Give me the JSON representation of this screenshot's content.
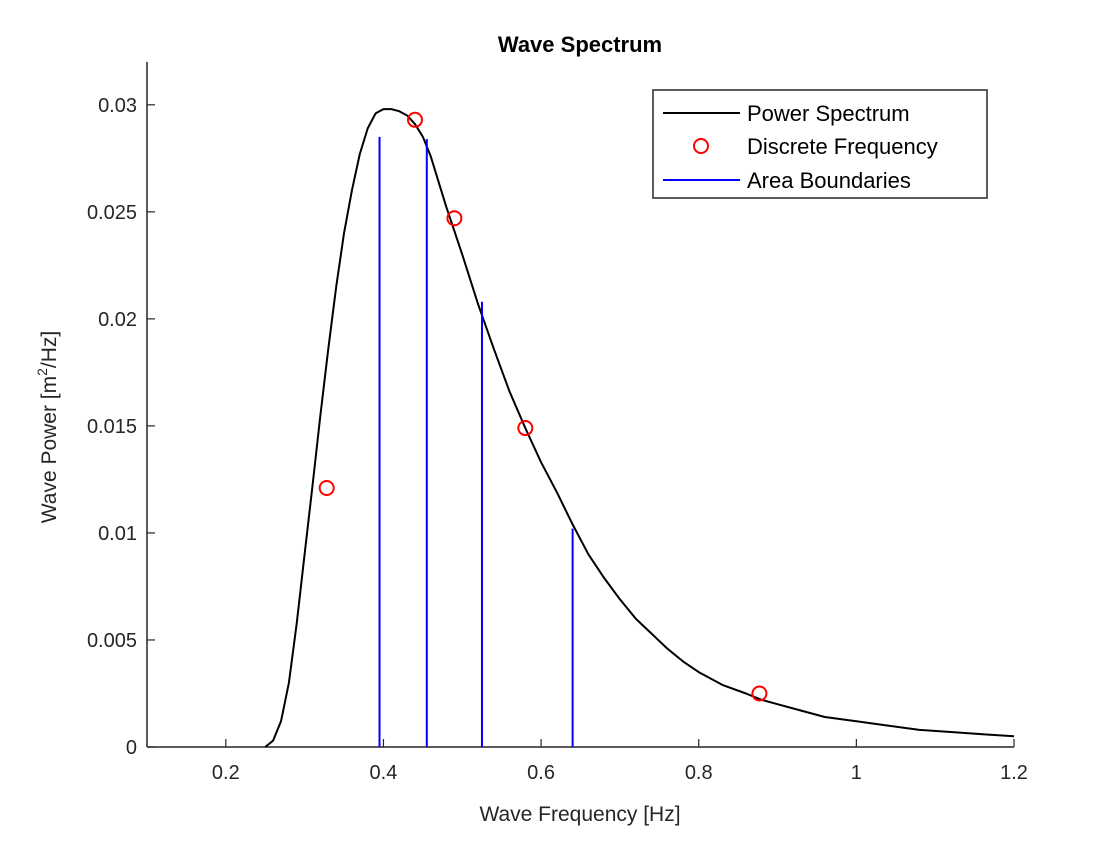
{
  "chart_data": {
    "type": "line",
    "title": "Wave Spectrum",
    "xlabel": "Wave Frequency [Hz]",
    "ylabel_prefix": "Wave Power [m",
    "ylabel_sup": "2",
    "ylabel_suffix": "/Hz]",
    "xlim": [
      0.1,
      1.2
    ],
    "ylim": [
      0,
      0.032
    ],
    "xticks": [
      0.2,
      0.4,
      0.6,
      0.8,
      1,
      1.2
    ],
    "xtick_labels": [
      "0.2",
      "0.4",
      "0.6",
      "0.8",
      "1",
      "1.2"
    ],
    "yticks": [
      0,
      0.005,
      0.01,
      0.015,
      0.02,
      0.025,
      0.03
    ],
    "ytick_labels": [
      "0",
      "0.005",
      "0.01",
      "0.015",
      "0.02",
      "0.025",
      "0.03"
    ],
    "grid": false,
    "legend_position": "top-right",
    "series": [
      {
        "name": "Power Spectrum",
        "kind": "line",
        "color": "#000000",
        "x": [
          0.25,
          0.26,
          0.27,
          0.28,
          0.29,
          0.3,
          0.31,
          0.32,
          0.33,
          0.34,
          0.35,
          0.36,
          0.37,
          0.38,
          0.39,
          0.4,
          0.41,
          0.42,
          0.43,
          0.44,
          0.45,
          0.46,
          0.47,
          0.48,
          0.49,
          0.5,
          0.52,
          0.54,
          0.56,
          0.58,
          0.6,
          0.62,
          0.64,
          0.66,
          0.68,
          0.7,
          0.72,
          0.74,
          0.76,
          0.78,
          0.8,
          0.83,
          0.86,
          0.88,
          0.9,
          0.93,
          0.96,
          1.0,
          1.04,
          1.08,
          1.12,
          1.16,
          1.2
        ],
        "y": [
          0.0,
          0.0003,
          0.0012,
          0.003,
          0.0058,
          0.009,
          0.0122,
          0.0155,
          0.0186,
          0.0215,
          0.024,
          0.026,
          0.0277,
          0.0289,
          0.0296,
          0.0298,
          0.0298,
          0.0297,
          0.0295,
          0.0291,
          0.0285,
          0.0276,
          0.0264,
          0.0252,
          0.0241,
          0.023,
          0.0207,
          0.0186,
          0.0166,
          0.0149,
          0.0133,
          0.0119,
          0.0104,
          0.009,
          0.0079,
          0.0069,
          0.006,
          0.0053,
          0.0046,
          0.004,
          0.0035,
          0.0029,
          0.0025,
          0.0022,
          0.002,
          0.0017,
          0.0014,
          0.0012,
          0.001,
          0.0008,
          0.0007,
          0.0006,
          0.0005
        ]
      },
      {
        "name": "Discrete Frequency",
        "kind": "markers",
        "color": "#ff0000",
        "x": [
          0.328,
          0.44,
          0.49,
          0.58,
          0.877
        ],
        "y": [
          0.0121,
          0.0293,
          0.0247,
          0.0149,
          0.0025
        ]
      },
      {
        "name": "Area Boundaries",
        "kind": "vlines",
        "color": "#0000ff",
        "x": [
          0.395,
          0.455,
          0.525,
          0.64
        ],
        "y": [
          0.0285,
          0.0284,
          0.0208,
          0.0102
        ]
      }
    ]
  }
}
